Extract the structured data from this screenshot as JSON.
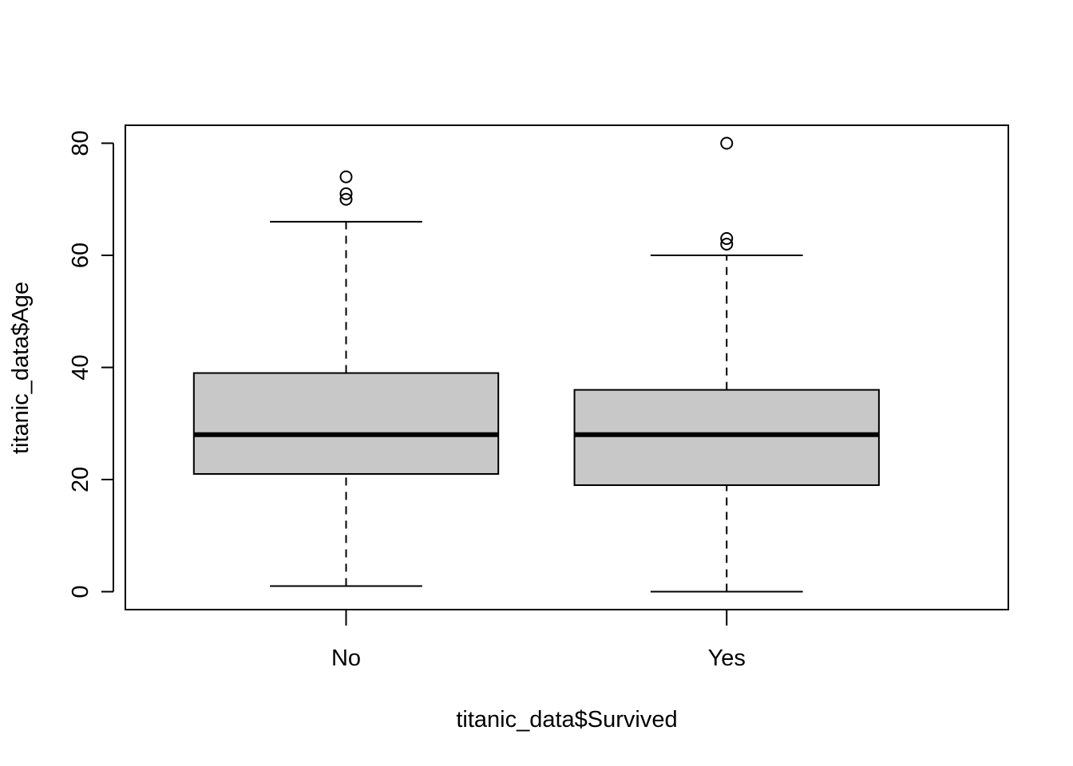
{
  "chart_data": {
    "type": "boxplot",
    "xlabel": "titanic_data$Survived",
    "ylabel": "titanic_data$Age",
    "ylim": [
      -3.2,
      83.2
    ],
    "yticks": [
      0,
      20,
      40,
      60,
      80
    ],
    "categories": [
      "No",
      "Yes"
    ],
    "boxes": [
      {
        "category": "No",
        "whisker_low": 1,
        "q1": 21,
        "median": 28,
        "q3": 39,
        "whisker_high": 66,
        "outliers": [
          70,
          71,
          74
        ]
      },
      {
        "category": "Yes",
        "whisker_low": 0,
        "q1": 19,
        "median": 28,
        "q3": 36,
        "whisker_high": 60,
        "outliers": [
          62,
          63,
          80
        ]
      }
    ],
    "box_fill": "#c8c8c8",
    "line_color": "#000000",
    "grid": false,
    "legend": "none"
  }
}
